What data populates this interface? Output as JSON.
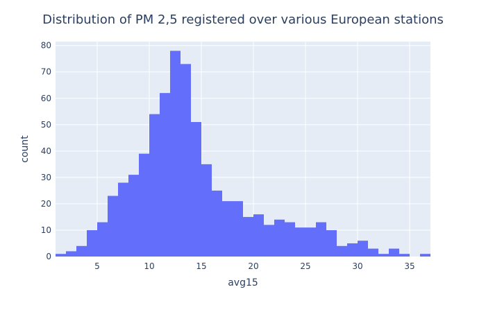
{
  "chart_data": {
    "type": "bar",
    "title": "Distribution of PM 2,5 registered over various European stations",
    "xlabel": "avg15",
    "ylabel": "count",
    "xlim": [
      1,
      37
    ],
    "ylim": [
      0,
      81.5
    ],
    "x_ticks": [
      5,
      10,
      15,
      20,
      25,
      30,
      35
    ],
    "y_ticks": [
      0,
      10,
      20,
      30,
      40,
      50,
      60,
      70,
      80
    ],
    "bin_width": 1,
    "bin_starts": [
      1,
      2,
      3,
      4,
      5,
      6,
      7,
      8,
      9,
      10,
      11,
      12,
      13,
      14,
      15,
      16,
      17,
      18,
      19,
      20,
      21,
      22,
      23,
      24,
      25,
      26,
      27,
      28,
      29,
      30,
      31,
      32,
      33,
      34,
      35,
      36
    ],
    "values": [
      1,
      2,
      4,
      10,
      13,
      23,
      28,
      31,
      39,
      54,
      62,
      78,
      73,
      51,
      35,
      25,
      21,
      21,
      15,
      16,
      12,
      14,
      13,
      11,
      11,
      13,
      10,
      4,
      5,
      6,
      3,
      1,
      3,
      1,
      0,
      1
    ],
    "bar_color": "#636efa",
    "plot_bgcolor": "#e5ecf6",
    "grid": true
  }
}
